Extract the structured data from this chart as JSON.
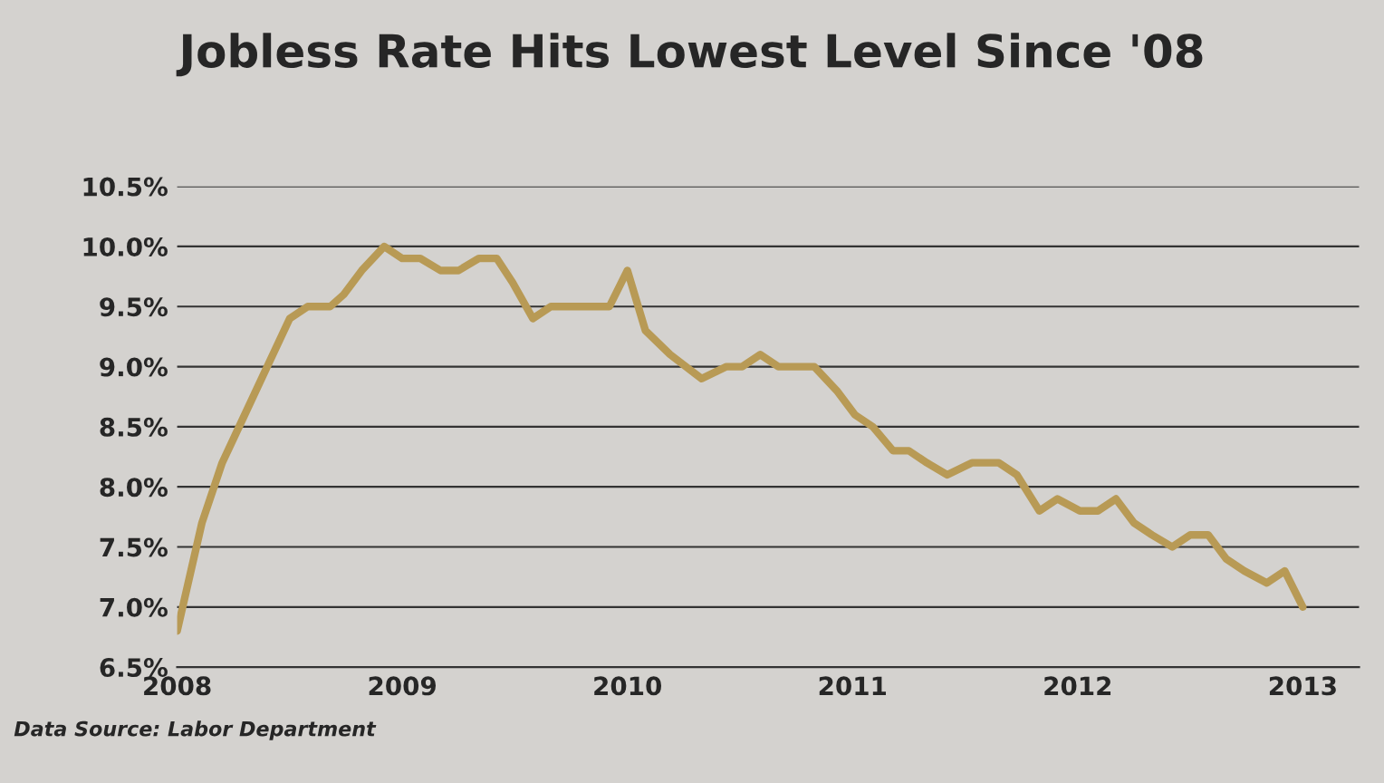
{
  "chart_data": {
    "type": "line",
    "title": "Jobless Rate Hits Lowest Level Since '08",
    "x": [
      2008.0,
      2008.11,
      2008.2,
      2008.3,
      2008.4,
      2008.5,
      2008.58,
      2008.68,
      2008.74,
      2008.82,
      2008.92,
      2009.0,
      2009.08,
      2009.17,
      2009.25,
      2009.34,
      2009.42,
      2009.49,
      2009.58,
      2009.66,
      2009.92,
      2010.0,
      2010.08,
      2010.19,
      2010.33,
      2010.44,
      2010.51,
      2010.59,
      2010.67,
      2010.83,
      2010.93,
      2011.01,
      2011.09,
      2011.18,
      2011.25,
      2011.33,
      2011.42,
      2011.53,
      2011.65,
      2011.73,
      2011.83,
      2011.91,
      2012.01,
      2012.09,
      2012.17,
      2012.25,
      2012.33,
      2012.42,
      2012.5,
      2012.58,
      2012.66,
      2012.74,
      2012.84,
      2012.92,
      2013.0
    ],
    "series": [
      {
        "color": "#b89a55",
        "values": [
          6.8,
          7.7,
          8.2,
          8.6,
          9.0,
          9.4,
          9.5,
          9.5,
          9.6,
          9.8,
          10.0,
          9.9,
          9.9,
          9.8,
          9.8,
          9.9,
          9.9,
          9.7,
          9.4,
          9.5,
          9.5,
          9.8,
          9.3,
          9.1,
          8.9,
          9.0,
          9.0,
          9.1,
          9.0,
          9.0,
          8.8,
          8.6,
          8.5,
          8.3,
          8.3,
          8.2,
          8.1,
          8.2,
          8.2,
          8.1,
          7.8,
          7.9,
          7.8,
          7.8,
          7.9,
          7.7,
          7.6,
          7.5,
          7.6,
          7.6,
          7.4,
          7.3,
          7.2,
          7.3,
          7.0
        ]
      }
    ],
    "xlim": [
      2008,
      2013.25
    ],
    "xticks": [
      2008,
      2009,
      2010,
      2011,
      2012,
      2013
    ],
    "ylim": [
      6.5,
      10.5
    ],
    "yticks": [
      {
        "value": 6.5,
        "label": "6.5%"
      },
      {
        "value": 7.0,
        "label": "7.0%"
      },
      {
        "value": 7.5,
        "label": "7.5%"
      },
      {
        "value": 8.0,
        "label": "8.0%"
      },
      {
        "value": 8.5,
        "label": "8.5%"
      },
      {
        "value": 9.0,
        "label": "9.0%"
      },
      {
        "value": 9.5,
        "label": "9.5%"
      },
      {
        "value": 10.0,
        "label": "10.0%"
      },
      {
        "value": 10.5,
        "label": "10.5%"
      }
    ],
    "grid": "y",
    "marker": "none",
    "line_style": "solid",
    "annotations": [
      "Data Source: Labor Department"
    ]
  }
}
